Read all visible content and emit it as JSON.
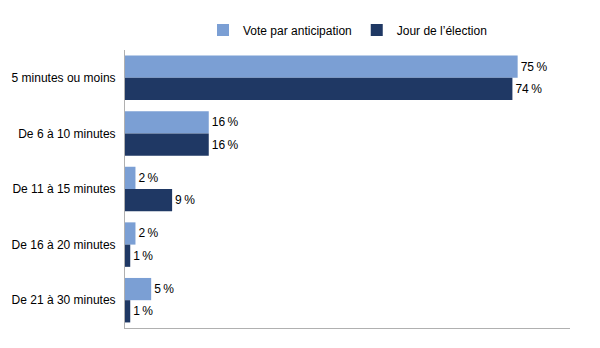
{
  "chart_data": {
    "type": "bar",
    "orientation": "horizontal",
    "categories": [
      "5 minutes ou moins",
      "De 6 à 10 minutes",
      "De 11 à 15 minutes",
      "De 16 à 20 minutes",
      "De 21 à 30 minutes"
    ],
    "series": [
      {
        "name": "Vote par anticipation",
        "color": "#7b9fd4",
        "values": [
          75,
          16,
          2,
          2,
          5
        ],
        "value_labels": [
          "75 %",
          "16 %",
          "2 %",
          "2 %",
          "5 %"
        ]
      },
      {
        "name": "Jour de l’élection",
        "color": "#1f3864",
        "values": [
          74,
          16,
          9,
          1,
          1
        ],
        "value_labels": [
          "74 %",
          "16 %",
          "9 %",
          "1 %",
          "1 %"
        ]
      }
    ],
    "xlim": [
      0,
      85
    ],
    "data_labels": true,
    "tick_labels": "y",
    "grid": false,
    "legend": "top"
  }
}
